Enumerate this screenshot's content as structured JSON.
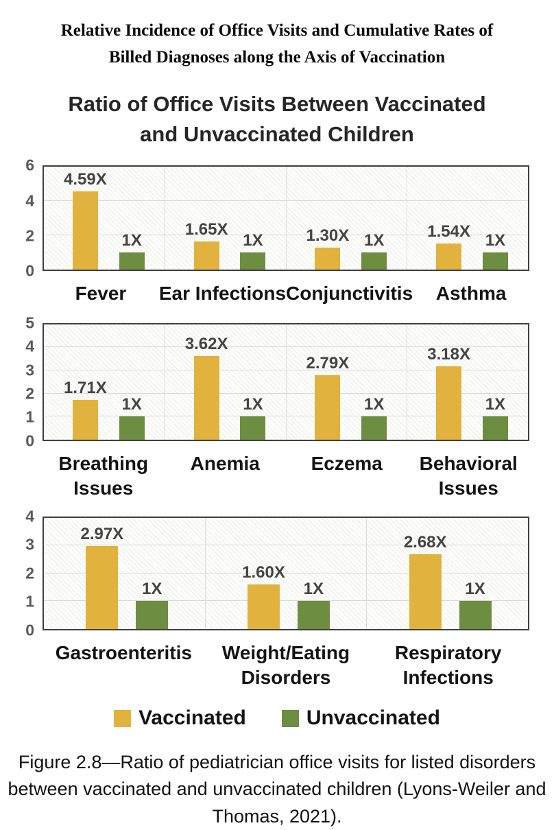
{
  "doc_title": {
    "lines": [
      "Relative Incidence of Office Visits and Cumulative Rates of",
      "Billed Diagnoses along the Axis of Vaccination"
    ]
  },
  "chart_title": {
    "lines": [
      "Ratio of Office Visits Between Vaccinated",
      "and Unvaccinated Children"
    ]
  },
  "legend": {
    "items": [
      {
        "label": "Vaccinated",
        "color": "#E2B23E"
      },
      {
        "label": "Unvaccinated",
        "color": "#6D8D41"
      }
    ]
  },
  "caption": {
    "lines": [
      "Figure 2.8—Ratio of pediatrician office visits for listed disorders",
      "between vaccinated and unvaccinated children (Lyons-Weiler and",
      "Thomas, 2021)."
    ]
  },
  "chart_data": {
    "type": "bar",
    "title": "Ratio of Office Visits Between Vaccinated and Unvaccinated Children",
    "series": [
      {
        "name": "Vaccinated",
        "color": "#E2B23E"
      },
      {
        "name": "Unvaccinated",
        "color": "#6D8D41"
      }
    ],
    "grid": true,
    "legend_position": "bottom",
    "panels": [
      {
        "ylim": [
          0,
          6
        ],
        "yticks": [
          0,
          2,
          4,
          6
        ],
        "gridlines": [
          2,
          4
        ],
        "categories": [
          {
            "label": "Fever",
            "vaccinated": 4.59,
            "vaccinated_label": "4.59X",
            "unvaccinated": 1,
            "unvaccinated_label": "1X"
          },
          {
            "label": "Ear Infections",
            "vaccinated": 1.65,
            "vaccinated_label": "1.65X",
            "unvaccinated": 1,
            "unvaccinated_label": "1X"
          },
          {
            "label": "Conjunctivitis",
            "vaccinated": 1.3,
            "vaccinated_label": "1.30X",
            "unvaccinated": 1,
            "unvaccinated_label": "1X"
          },
          {
            "label": "Asthma",
            "vaccinated": 1.54,
            "vaccinated_label": "1.54X",
            "unvaccinated": 1,
            "unvaccinated_label": "1X"
          }
        ]
      },
      {
        "ylim": [
          0,
          5
        ],
        "yticks": [
          0,
          1,
          2,
          3,
          4,
          5
        ],
        "gridlines": [
          1,
          2,
          3,
          4
        ],
        "categories": [
          {
            "label": "Breathing Issues",
            "vaccinated": 1.71,
            "vaccinated_label": "1.71X",
            "unvaccinated": 1,
            "unvaccinated_label": "1X"
          },
          {
            "label": "Anemia",
            "vaccinated": 3.62,
            "vaccinated_label": "3.62X",
            "unvaccinated": 1,
            "unvaccinated_label": "1X"
          },
          {
            "label": "Eczema",
            "vaccinated": 2.79,
            "vaccinated_label": "2.79X",
            "unvaccinated": 1,
            "unvaccinated_label": "1X"
          },
          {
            "label": "Behavioral Issues",
            "vaccinated": 3.18,
            "vaccinated_label": "3.18X",
            "unvaccinated": 1,
            "unvaccinated_label": "1X"
          }
        ]
      },
      {
        "ylim": [
          0,
          4
        ],
        "yticks": [
          0,
          1,
          2,
          3,
          4
        ],
        "gridlines": [
          1,
          2,
          3
        ],
        "categories": [
          {
            "label": "Gastroenteritis",
            "vaccinated": 2.97,
            "vaccinated_label": "2.97X",
            "unvaccinated": 1,
            "unvaccinated_label": "1X"
          },
          {
            "label": "Weight/Eating Disorders",
            "vaccinated": 1.6,
            "vaccinated_label": "1.60X",
            "unvaccinated": 1,
            "unvaccinated_label": "1X"
          },
          {
            "label": "Respiratory Infections",
            "vaccinated": 2.68,
            "vaccinated_label": "2.68X",
            "unvaccinated": 1,
            "unvaccinated_label": "1X"
          }
        ]
      }
    ]
  }
}
